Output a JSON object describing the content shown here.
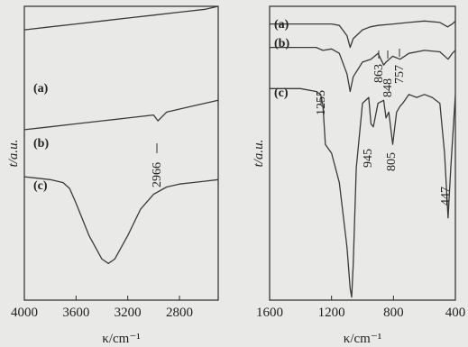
{
  "chart_data": [
    {
      "type": "line",
      "panel": "left",
      "xlabel": "κ/cm⁻¹",
      "ylabel": "t/a.u.",
      "xlim": [
        4000,
        2500
      ],
      "reversed_x": true,
      "ticks": [
        "4000",
        "3600",
        "3200",
        "2800"
      ],
      "tick_values": [
        4000,
        3600,
        3200,
        2800
      ],
      "grid": false,
      "series": [
        {
          "name": "(a)",
          "x": [
            4000,
            3800,
            3600,
            3400,
            3200,
            3000,
            2800,
            2600,
            2500
          ],
          "y": [
            92,
            93,
            94,
            95,
            96,
            97,
            98,
            99,
            100
          ]
        },
        {
          "name": "(b)",
          "x": [
            4000,
            3800,
            3600,
            3400,
            3200,
            3000,
            2966,
            2900,
            2700,
            2500
          ],
          "y": [
            58,
            59,
            60,
            61,
            62,
            63,
            61,
            64,
            66,
            68
          ]
        },
        {
          "name": "(c)",
          "x": [
            4000,
            3900,
            3800,
            3700,
            3650,
            3600,
            3500,
            3400,
            3350,
            3300,
            3200,
            3100,
            3000,
            2900,
            2800,
            2700,
            2600,
            2500
          ],
          "y": [
            42,
            41.5,
            41,
            40,
            38,
            33,
            22,
            14,
            12.5,
            14,
            22,
            31,
            36,
            38.5,
            39.5,
            40,
            40.5,
            41
          ]
        }
      ],
      "annotations": [
        {
          "text": "2966",
          "x": 2966
        }
      ]
    },
    {
      "type": "line",
      "panel": "right",
      "xlabel": "κ/cm⁻¹",
      "ylabel": "t/a.u.",
      "xlim": [
        1600,
        400
      ],
      "reversed_x": true,
      "ticks": [
        "1600",
        "1200",
        "800",
        "400"
      ],
      "tick_values": [
        1600,
        1200,
        800,
        400
      ],
      "grid": false,
      "series": [
        {
          "name": "(a)",
          "x": [
            1600,
            1400,
            1200,
            1150,
            1100,
            1080,
            1060,
            1000,
            950,
            900,
            800,
            700,
            600,
            500,
            450,
            420,
            400
          ],
          "y": [
            94,
            94,
            94,
            93.5,
            90,
            86,
            89,
            92,
            93,
            93.5,
            94,
            94.5,
            95,
            94.5,
            93,
            94,
            95
          ]
        },
        {
          "name": "(b)",
          "x": [
            1600,
            1400,
            1300,
            1255,
            1200,
            1150,
            1100,
            1080,
            1060,
            1000,
            945,
            900,
            863,
            848,
            805,
            757,
            700,
            600,
            500,
            447,
            420,
            400
          ],
          "y": [
            86,
            86,
            86,
            85,
            85.5,
            84,
            77,
            71,
            76,
            81,
            82,
            84,
            80,
            81,
            83,
            82,
            84,
            85,
            84.5,
            82,
            84,
            85
          ]
        },
        {
          "name": "(c)",
          "x": [
            1600,
            1400,
            1300,
            1270,
            1255,
            1240,
            1200,
            1150,
            1100,
            1080,
            1070,
            1060,
            1040,
            1000,
            960,
            945,
            930,
            900,
            863,
            848,
            830,
            805,
            780,
            757,
            740,
            700,
            650,
            600,
            550,
            500,
            470,
            447,
            430,
            400
          ],
          "y": [
            72,
            72,
            71,
            70,
            66,
            53,
            50,
            40,
            18,
            4,
            1,
            12,
            45,
            67,
            69,
            60,
            59,
            67,
            68,
            62,
            64,
            53,
            64,
            66,
            67,
            70,
            69,
            70,
            69,
            67,
            50,
            28,
            45,
            70
          ]
        }
      ],
      "annotations": [
        {
          "text": "1255",
          "x": 1255
        },
        {
          "text": "863",
          "x": 863
        },
        {
          "text": "848",
          "x": 848
        },
        {
          "text": "757",
          "x": 757
        },
        {
          "text": "945",
          "x": 945
        },
        {
          "text": "805",
          "x": 805
        },
        {
          "text": "447",
          "x": 447
        }
      ]
    }
  ]
}
